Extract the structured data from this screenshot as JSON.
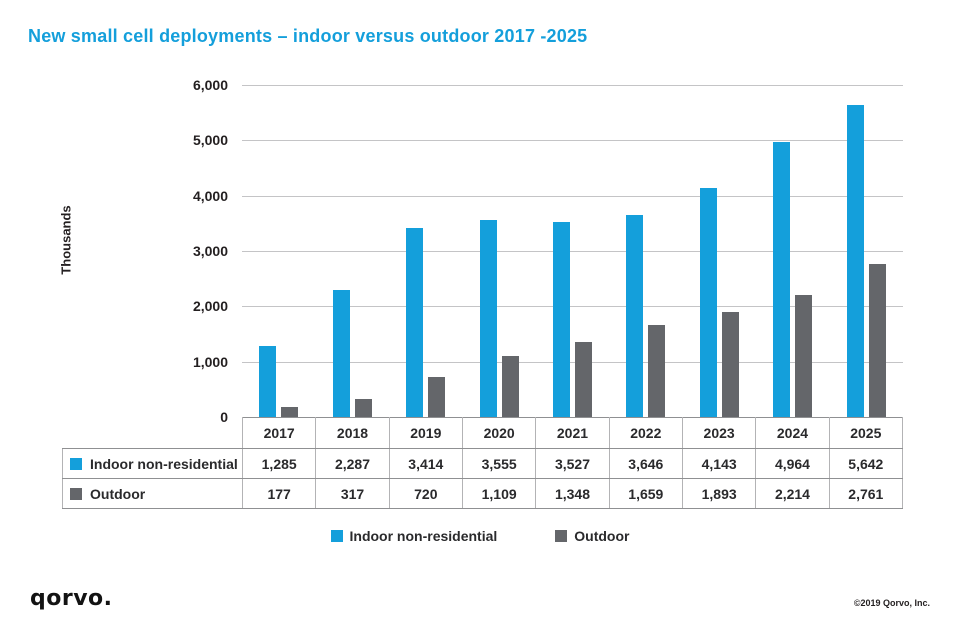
{
  "title": "New small cell deployments – indoor versus outdoor 2017 -2025",
  "colors": {
    "accent_blue": "#149FDB",
    "series_gray": "#64666A",
    "gridline": "#C4C4C6",
    "text_dark": "#231F20"
  },
  "chart_data": {
    "type": "bar",
    "title": "New small cell deployments – indoor versus outdoor 2017 -2025",
    "categories": [
      "2017",
      "2018",
      "2019",
      "2020",
      "2021",
      "2022",
      "2023",
      "2024",
      "2025"
    ],
    "series": [
      {
        "name": "Indoor non-residential",
        "color": "#149FDB",
        "values": [
          1285,
          2287,
          3414,
          3555,
          3527,
          3646,
          4143,
          4964,
          5642
        ]
      },
      {
        "name": "Outdoor",
        "color": "#64666A",
        "values": [
          177,
          317,
          720,
          1109,
          1348,
          1659,
          1893,
          2214,
          2761
        ]
      }
    ],
    "xlabel": "",
    "ylabel": "Thousands",
    "ylim": [
      0,
      6000
    ],
    "ytick_step": 1000,
    "ytick_labels": [
      "0",
      "1,000",
      "2,000",
      "3,000",
      "4,000",
      "5,000",
      "6,000"
    ],
    "grid": "horizontal",
    "legend_position": "bottom",
    "data_table_shown": true
  },
  "footer": {
    "logo_text": "qorvo.",
    "copyright": "©2019 Qorvo, Inc."
  }
}
